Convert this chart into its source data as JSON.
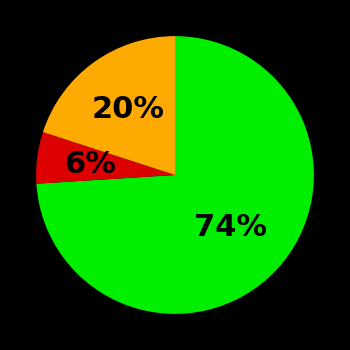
{
  "slices": [
    74,
    6,
    20
  ],
  "labels": [
    "74%",
    "6%",
    "20%"
  ],
  "colors": [
    "#00ee00",
    "#dd0000",
    "#ffaa00"
  ],
  "background_color": "#000000",
  "startangle": 90,
  "label_fontsize": 22,
  "label_fontweight": "bold",
  "label_radii": [
    0.55,
    0.62,
    0.58
  ]
}
